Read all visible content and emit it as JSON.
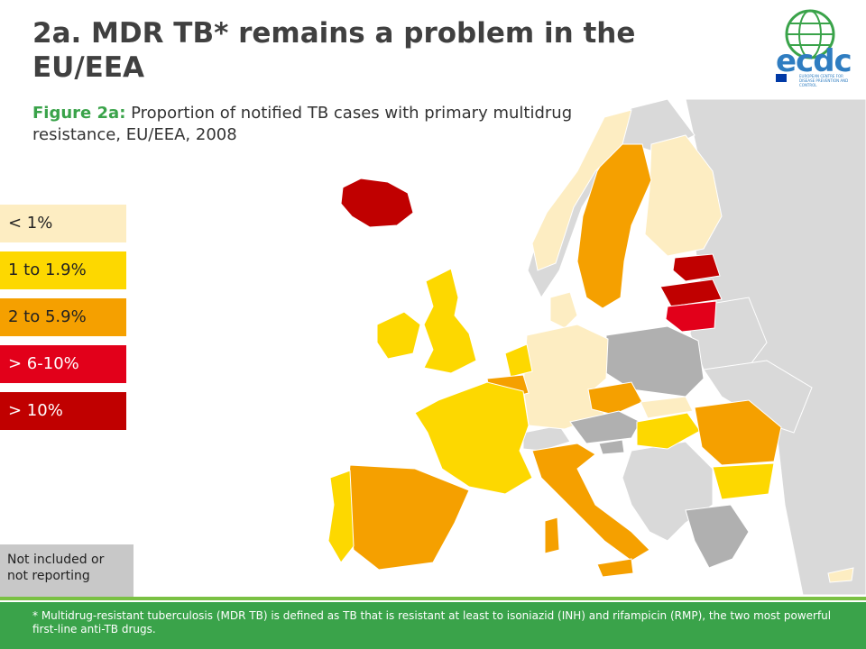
{
  "title": "2a. MDR TB* remains a problem in the EU/EEA",
  "figure_label": "Figure 2a:",
  "figure_caption": "Proportion of notified TB cases with primary multidrug resistance, EU/EEA, 2008",
  "legend": [
    {
      "label": "< 1%",
      "color": "#fdedc2"
    },
    {
      "label": "1 to 1.9%",
      "color": "#fdd800"
    },
    {
      "label": "2 to 5.9%",
      "color": "#f5a000"
    },
    {
      "label": "> 6-10%",
      "color": "#e2001a"
    },
    {
      "label": "> 10%",
      "color": "#c00000"
    }
  ],
  "not_included": {
    "label": "Not included or not reporting",
    "color": "#c8c8c8"
  },
  "logo": {
    "text": "ecdc",
    "subtext": "EUROPEAN CENTRE FOR DISEASE PREVENTION AND CONTROL"
  },
  "footnote": "* Multidrug-resistant tuberculosis (MDR TB) is defined as TB that is resistant at least to isoniazid (INH) and rifampicin (RMP), the two most powerful first-line anti-TB drugs.",
  "colors": {
    "footer_green": "#3aa34a",
    "footer_light_green": "#7ac143",
    "non_eu_land": "#d9d9d9",
    "not_reporting": "#b0b0b0"
  }
}
